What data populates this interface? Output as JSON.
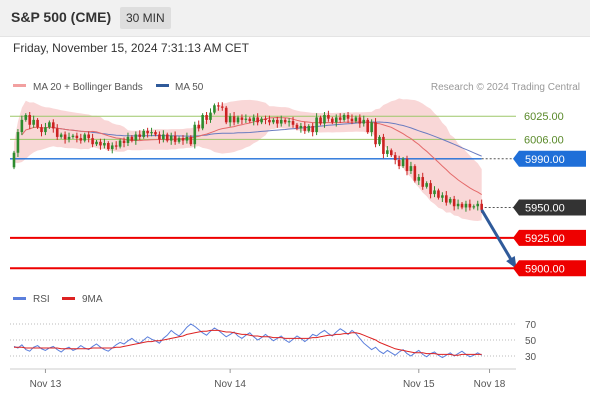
{
  "header": {
    "title": "S&P 500 (CME)",
    "timeframe": "30 MIN"
  },
  "datetime": "Friday, November 15, 2024 7:31:13 AM CET",
  "credit": "Research © 2024 Trading Central",
  "colors": {
    "up": "#2e8b2e",
    "down": "#cc2222",
    "bands": "#f7c9c9",
    "ma20": "#e46a6a",
    "ma50": "#6a7cc0",
    "blue_level": "#1f6fd8",
    "red_level": "#ee0000",
    "green_level": "#9ec76a",
    "dark_label": "#333333",
    "arrow": "#2f5a9a",
    "rsi": "#5b7fdc",
    "rsi_ma": "#dd2222"
  },
  "chart_data": [
    {
      "type": "candlestick",
      "legend": [
        {
          "label": "MA 20 + Bollinger Bands",
          "color": "#f2a0a0"
        },
        {
          "label": "MA 50",
          "color": "#2f5a9a"
        }
      ],
      "ylim": [
        5892,
        6040
      ],
      "x_tick_labels": [
        {
          "label": "Nov 13",
          "index": 8
        },
        {
          "label": "Nov 14",
          "index": 55
        },
        {
          "label": "Nov 15",
          "index": 103
        },
        {
          "label": "Nov 18",
          "index": 121
        }
      ],
      "levels": [
        {
          "label": "6025.00",
          "value": 6025,
          "style": "green"
        },
        {
          "label": "6006.00",
          "value": 6006,
          "style": "green"
        },
        {
          "label": "5990.00",
          "value": 5990,
          "style": "blue"
        },
        {
          "label": "5950.00",
          "value": 5950,
          "style": "current"
        },
        {
          "label": "5925.00",
          "value": 5925,
          "style": "red"
        },
        {
          "label": "5900.00",
          "value": 5900,
          "style": "red"
        }
      ],
      "projection": {
        "from_index": 119,
        "from_value": 5948,
        "to_index": 128,
        "to_value": 5900
      },
      "closes": [
        5995,
        6012,
        6022,
        6026,
        6018,
        6022,
        6016,
        6012,
        6016,
        6020,
        6015,
        6008,
        6010,
        6006,
        6008,
        6009,
        6007,
        6005,
        6010,
        6007,
        6002,
        6004,
        6001,
        6003,
        5998,
        6001,
        6000,
        6005,
        6003,
        6008,
        6005,
        6010,
        6008,
        6013,
        6011,
        6012,
        6010,
        6006,
        6010,
        6005,
        6009,
        6004,
        6007,
        6005,
        6008,
        6002,
        6018,
        6015,
        6026,
        6022,
        6028,
        6034,
        6033,
        6032,
        6020,
        6025,
        6020,
        6024,
        6022,
        6023,
        6021,
        6024,
        6020,
        6023,
        6022,
        6020,
        6022,
        6019,
        6022,
        6020,
        6021,
        6018,
        6015,
        6017,
        6013,
        6017,
        6012,
        6024,
        6019,
        6026,
        6023,
        6020,
        6024,
        6022,
        6026,
        6023,
        6021,
        6024,
        6019,
        6022,
        6012,
        6020,
        6002,
        6008,
        5994,
        5997,
        5993,
        5989,
        5984,
        5990,
        5980,
        5984,
        5972,
        5975,
        5967,
        5970,
        5961,
        5964,
        5958,
        5960,
        5954,
        5957,
        5951,
        5953,
        5950,
        5953,
        5950,
        5951,
        5953,
        5948
      ]
    },
    {
      "type": "line",
      "legend": [
        {
          "label": "RSI",
          "color": "#5b7fdc"
        },
        {
          "label": "9MA",
          "color": "#dd2222"
        }
      ],
      "ylim": [
        20,
        80
      ],
      "y_ticks": [
        70,
        50,
        30
      ],
      "series": [
        {
          "name": "RSI",
          "values": [
            42,
            40,
            44,
            38,
            36,
            41,
            43,
            39,
            37,
            40,
            42,
            38,
            35,
            39,
            41,
            37,
            39,
            43,
            40,
            38,
            42,
            45,
            41,
            38,
            36,
            40,
            44,
            47,
            45,
            49,
            52,
            48,
            46,
            50,
            54,
            51,
            49,
            46,
            52,
            56,
            62,
            58,
            55,
            60,
            66,
            70,
            67,
            63,
            59,
            56,
            61,
            65,
            62,
            58,
            54,
            57,
            60,
            55,
            52,
            56,
            59,
            54,
            50,
            53,
            57,
            53,
            49,
            52,
            55,
            50,
            47,
            51,
            55,
            52,
            48,
            52,
            57,
            55,
            59,
            62,
            58,
            55,
            60,
            64,
            61,
            57,
            62,
            58,
            52,
            46,
            42,
            38,
            41,
            36,
            33,
            37,
            34,
            31,
            35,
            38,
            33,
            30,
            34,
            37,
            32,
            29,
            33,
            35,
            31,
            28,
            31,
            34,
            30,
            33,
            36,
            32,
            29,
            31,
            34,
            31
          ]
        },
        {
          "name": "9MA",
          "values": [
            41,
            41,
            41,
            40,
            40,
            40,
            40,
            40,
            40,
            40,
            40,
            40,
            39,
            39,
            39,
            39,
            39,
            39,
            39,
            39,
            40,
            40,
            40,
            40,
            40,
            40,
            41,
            41,
            42,
            43,
            44,
            45,
            46,
            47,
            48,
            48,
            49,
            49,
            50,
            51,
            52,
            53,
            54,
            55,
            57,
            58,
            59,
            60,
            61,
            61,
            62,
            62,
            62,
            61,
            60,
            60,
            59,
            58,
            57,
            57,
            56,
            55,
            55,
            54,
            54,
            54,
            53,
            53,
            53,
            52,
            52,
            52,
            52,
            52,
            52,
            52,
            53,
            53,
            54,
            55,
            56,
            56,
            57,
            57,
            58,
            58,
            59,
            59,
            58,
            56,
            54,
            52,
            50,
            47,
            45,
            43,
            41,
            39,
            38,
            37,
            36,
            35,
            34,
            34,
            34,
            33,
            33,
            33,
            32,
            32,
            32,
            32,
            31,
            31,
            32,
            32,
            32,
            32,
            32,
            32
          ]
        }
      ]
    }
  ]
}
